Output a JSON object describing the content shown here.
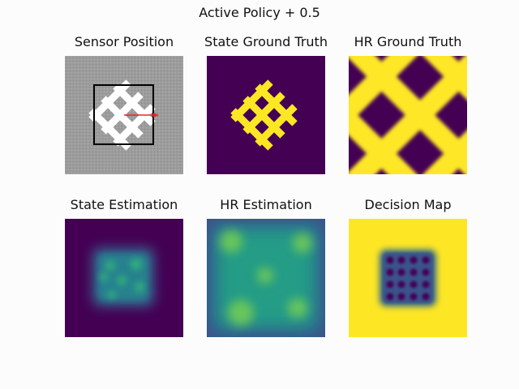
{
  "figure": {
    "title": "Active Policy + 0.5"
  },
  "panels": [
    {
      "id": "sensor",
      "title": "Sensor Position"
    },
    {
      "id": "state_gt",
      "title": "State Ground Truth"
    },
    {
      "id": "hr_gt",
      "title": "HR Ground Truth"
    },
    {
      "id": "state_est",
      "title": "State Estimation"
    },
    {
      "id": "hr_est",
      "title": "HR Estimation"
    },
    {
      "id": "decision",
      "title": "Decision Map"
    }
  ],
  "colors": {
    "page_background": "#fcfcfc",
    "viridis_dark": "#440154",
    "viridis_blue": "#3b528b",
    "viridis_teal": "#21918c",
    "viridis_green": "#5ec962",
    "viridis_yellow": "#fde725",
    "sensor_background": "#9c9c9c",
    "sensor_pattern": "#ffffff",
    "sensor_box": "#000000",
    "sensor_arrow": "#e8262b"
  }
}
